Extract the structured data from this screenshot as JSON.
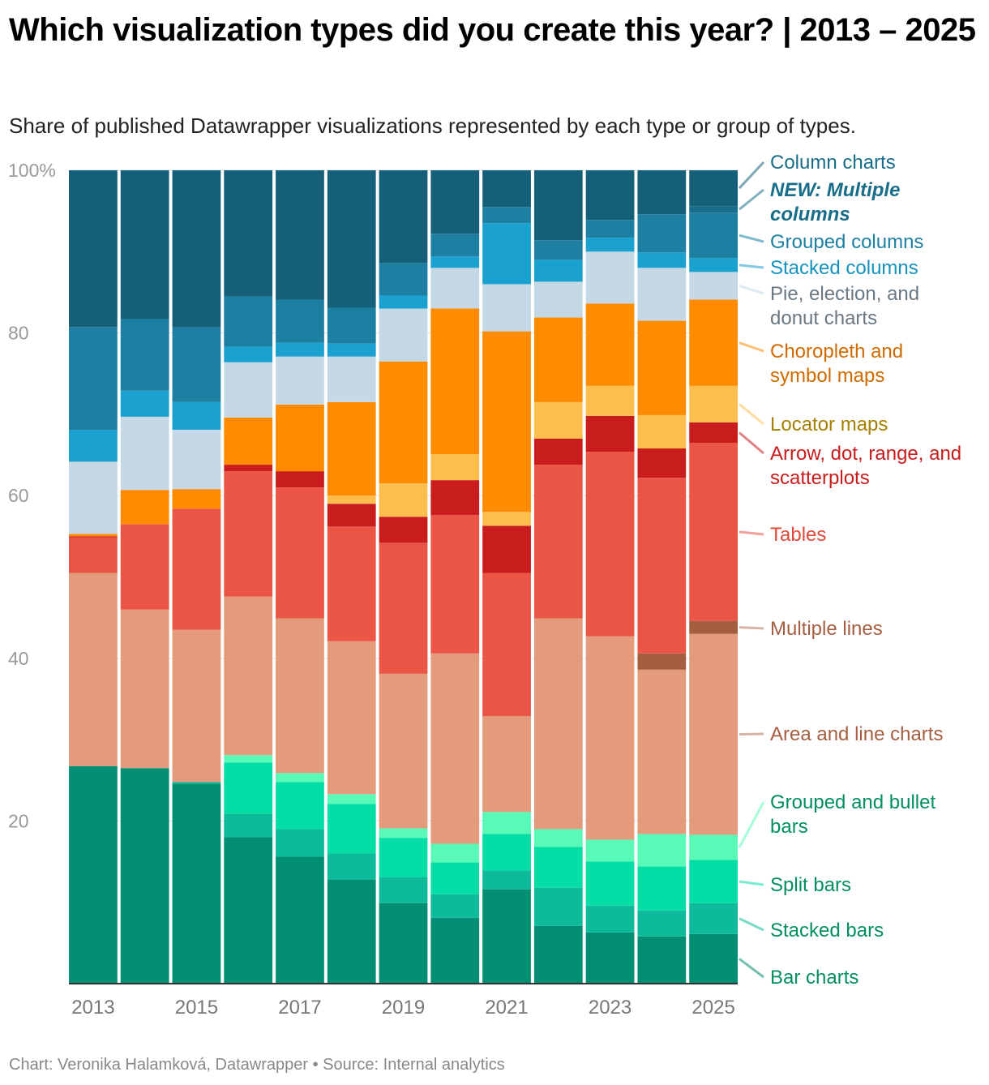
{
  "title": "Which visualization types did you create this year? | 2013 – 2025",
  "subtitle": "Share of published Datawrapper visualizations represented by each type or group of types.",
  "footer": "Chart: Veronika Halamková, Datawrapper • Source: Internal analytics",
  "chart_data": {
    "type": "bar",
    "stacked": true,
    "normalized_percent": true,
    "title": "Which visualization types did you create this year? | 2013 – 2025",
    "ylim": [
      0,
      100
    ],
    "y_ticks": [
      "100%",
      "80",
      "60",
      "40",
      "20"
    ],
    "x_tick_labels": [
      "2013",
      "2015",
      "2017",
      "2019",
      "2021",
      "2023",
      "2025"
    ],
    "grid": true,
    "legend_placement": "right (direct labels)",
    "categories": [
      "2013",
      "2014",
      "2015",
      "2016",
      "2017",
      "2018",
      "2019",
      "2020",
      "2021",
      "2022",
      "2023",
      "2024",
      "2025"
    ],
    "series": [
      {
        "name": "Bar charts",
        "color": "#028e72",
        "label_color": "#038e61",
        "values": [
          26.8,
          26.5,
          24.6,
          18.0,
          15.6,
          12.8,
          9.9,
          8.1,
          11.6,
          7.1,
          6.3,
          5.8,
          6.1
        ]
      },
      {
        "name": "Stacked bars",
        "color": "#0dbb9a",
        "label_color": "#038e61",
        "values": [
          0,
          0,
          0.2,
          2.9,
          3.4,
          3.2,
          3.2,
          2.9,
          2.3,
          4.7,
          3.3,
          3.2,
          3.8
        ]
      },
      {
        "name": "Split bars",
        "color": "#04dea6",
        "label_color": "#038e61",
        "values": [
          0,
          0,
          0,
          6.3,
          5.8,
          6.1,
          4.8,
          3.9,
          4.5,
          5.0,
          5.4,
          5.4,
          5.3
        ]
      },
      {
        "name": "Grouped and bullet bars",
        "color": "#5bf9b7",
        "label_color": "#038e61",
        "values": [
          0,
          0,
          0,
          0.9,
          1.1,
          1.2,
          1.2,
          2.3,
          2.7,
          2.2,
          2.7,
          4.0,
          3.1
        ]
      },
      {
        "name": "Area and line charts",
        "color": "#e39b7b",
        "label_color": "#a65e41",
        "values": [
          23.8,
          19.5,
          18.7,
          19.5,
          19.0,
          18.8,
          19.0,
          23.4,
          11.8,
          25.9,
          25.0,
          20.2,
          24.7
        ]
      },
      {
        "name": "Multiple lines",
        "color": "#a65e41",
        "label_color": "#a65e41",
        "values": [
          0,
          0,
          0,
          0,
          0,
          0,
          0,
          0,
          0,
          0,
          0,
          2.0,
          1.6
        ]
      },
      {
        "name": "Tables",
        "color": "#ea5545",
        "label_color": "#e0493a",
        "values": [
          4.4,
          10.5,
          14.9,
          15.4,
          16.1,
          14.1,
          16.1,
          17.0,
          17.6,
          18.9,
          22.7,
          21.6,
          21.9
        ]
      },
      {
        "name": "Arrow, dot, range, and scatterplots",
        "color": "#c91c1c",
        "label_color": "#c91c1c",
        "values": [
          0.1,
          0,
          0,
          0.8,
          2.0,
          2.8,
          3.2,
          4.3,
          5.8,
          3.2,
          4.4,
          3.6,
          2.5
        ]
      },
      {
        "name": "Locator maps",
        "color": "#fdbe4e",
        "label_color": "#a78000",
        "values": [
          0,
          0,
          0,
          0,
          0,
          1.0,
          4.1,
          3.2,
          1.7,
          4.5,
          3.7,
          4.1,
          4.5
        ]
      },
      {
        "name": "Choropleth and symbol maps",
        "color": "#fe8b00",
        "label_color": "#d06a00",
        "values": [
          0.3,
          4.2,
          2.4,
          5.8,
          8.2,
          11.5,
          15.0,
          17.9,
          22.2,
          10.4,
          10.1,
          11.6,
          10.6
        ]
      },
      {
        "name": "Pie, election, and donut charts",
        "color": "#c5d8e6",
        "label_color": "#6a7883",
        "values": [
          8.9,
          9.0,
          7.3,
          6.8,
          5.9,
          5.6,
          6.5,
          5.0,
          5.8,
          4.4,
          6.4,
          6.5,
          3.4
        ]
      },
      {
        "name": "Stacked columns",
        "color": "#1aa1d0",
        "label_color": "#1592bd",
        "values": [
          3.9,
          3.2,
          3.4,
          1.9,
          1.7,
          1.6,
          1.6,
          1.4,
          7.5,
          2.7,
          1.7,
          1.9,
          1.7
        ]
      },
      {
        "name": "Grouped columns",
        "color": "#1d80a2",
        "label_color": "#1d80a2",
        "values": [
          12.7,
          8.8,
          9.2,
          6.2,
          5.3,
          4.4,
          4.0,
          2.8,
          2.0,
          2.4,
          2.2,
          4.7,
          5.6
        ]
      },
      {
        "name": "NEW: Multiple columns",
        "color": "#186e8a",
        "label_color": "#186e8a",
        "values": [
          0,
          0,
          0,
          0,
          0,
          0,
          0,
          0,
          0,
          0,
          0,
          0,
          0.8
        ]
      },
      {
        "name": "Column charts",
        "color": "#165f79",
        "label_color": "#186e8a",
        "values": [
          19.3,
          18.3,
          19.3,
          15.5,
          15.9,
          16.9,
          11.4,
          7.8,
          4.5,
          8.6,
          6.1,
          5.4,
          4.4
        ]
      }
    ]
  }
}
